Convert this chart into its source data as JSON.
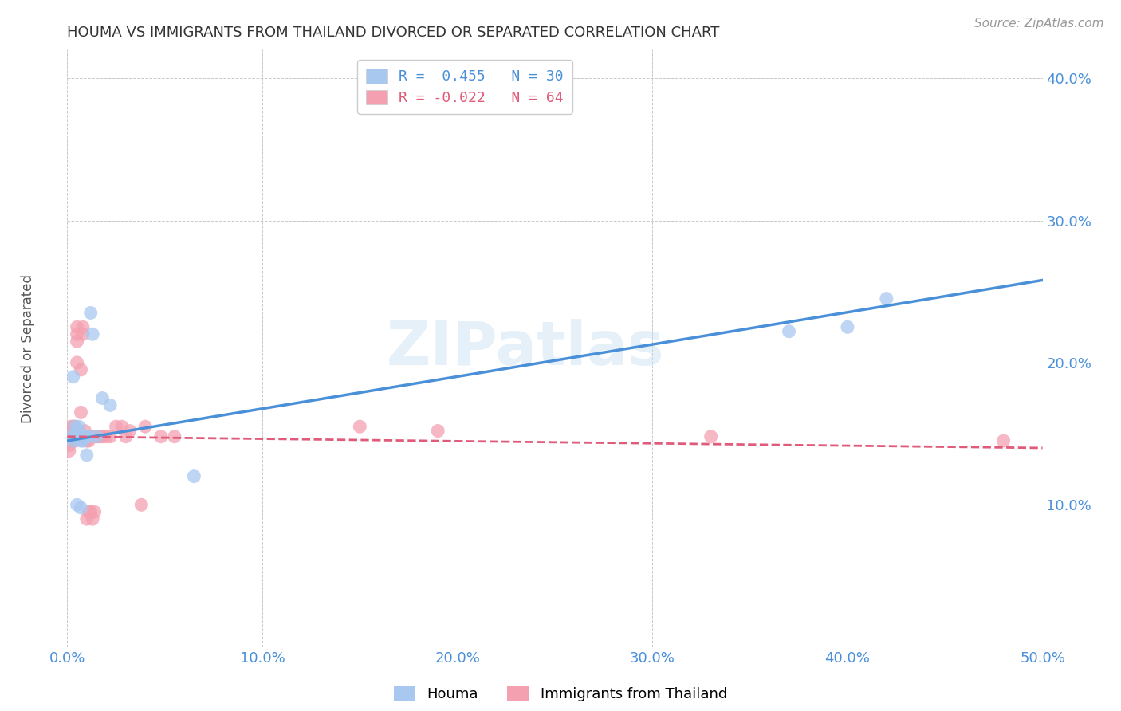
{
  "title": "HOUMA VS IMMIGRANTS FROM THAILAND DIVORCED OR SEPARATED CORRELATION CHART",
  "source": "Source: ZipAtlas.com",
  "ylabel": "Divorced or Separated",
  "xlim": [
    0.0,
    0.5
  ],
  "ylim": [
    0.0,
    0.42
  ],
  "xtick_labels": [
    "0.0%",
    "10.0%",
    "20.0%",
    "30.0%",
    "40.0%",
    "50.0%"
  ],
  "xtick_vals": [
    0.0,
    0.1,
    0.2,
    0.3,
    0.4,
    0.5
  ],
  "ytick_labels": [
    "10.0%",
    "20.0%",
    "30.0%",
    "40.0%"
  ],
  "ytick_vals": [
    0.1,
    0.2,
    0.3,
    0.4
  ],
  "houma_color": "#a8c8f0",
  "thailand_color": "#f4a0b0",
  "houma_line_color": "#4a90d9",
  "thailand_line_color": "#e05a7a",
  "legend_houma_R": "R =  0.455",
  "legend_houma_N": "N = 30",
  "legend_thailand_R": "R = -0.022",
  "legend_thailand_N": "N = 64",
  "watermark": "ZIPatlas",
  "houma_x": [
    0.002,
    0.003,
    0.003,
    0.004,
    0.004,
    0.005,
    0.005,
    0.005,
    0.006,
    0.006,
    0.007,
    0.007,
    0.007,
    0.008,
    0.008,
    0.008,
    0.009,
    0.009,
    0.01,
    0.01,
    0.011,
    0.012,
    0.013,
    0.015,
    0.018,
    0.022,
    0.065,
    0.37,
    0.4,
    0.42
  ],
  "houma_y": [
    0.148,
    0.145,
    0.19,
    0.148,
    0.155,
    0.148,
    0.152,
    0.1,
    0.148,
    0.155,
    0.148,
    0.145,
    0.098,
    0.148,
    0.145,
    0.148,
    0.148,
    0.148,
    0.135,
    0.148,
    0.148,
    0.235,
    0.22,
    0.148,
    0.175,
    0.17,
    0.12,
    0.222,
    0.225,
    0.245
  ],
  "thailand_x": [
    0.001,
    0.001,
    0.001,
    0.001,
    0.002,
    0.002,
    0.002,
    0.002,
    0.002,
    0.003,
    0.003,
    0.003,
    0.003,
    0.003,
    0.004,
    0.004,
    0.004,
    0.004,
    0.004,
    0.005,
    0.005,
    0.005,
    0.005,
    0.006,
    0.006,
    0.006,
    0.007,
    0.007,
    0.007,
    0.007,
    0.008,
    0.008,
    0.008,
    0.009,
    0.009,
    0.009,
    0.01,
    0.01,
    0.01,
    0.011,
    0.011,
    0.012,
    0.012,
    0.013,
    0.013,
    0.014,
    0.015,
    0.016,
    0.017,
    0.018,
    0.02,
    0.022,
    0.025,
    0.028,
    0.03,
    0.032,
    0.038,
    0.04,
    0.048,
    0.055,
    0.15,
    0.19,
    0.33,
    0.48
  ],
  "thailand_y": [
    0.138,
    0.142,
    0.148,
    0.148,
    0.145,
    0.148,
    0.15,
    0.155,
    0.148,
    0.148,
    0.148,
    0.152,
    0.155,
    0.145,
    0.148,
    0.15,
    0.148,
    0.155,
    0.145,
    0.2,
    0.215,
    0.22,
    0.225,
    0.148,
    0.152,
    0.148,
    0.148,
    0.165,
    0.195,
    0.148,
    0.148,
    0.22,
    0.225,
    0.148,
    0.152,
    0.148,
    0.145,
    0.148,
    0.09,
    0.145,
    0.095,
    0.148,
    0.095,
    0.148,
    0.09,
    0.095,
    0.148,
    0.148,
    0.148,
    0.148,
    0.148,
    0.148,
    0.155,
    0.155,
    0.148,
    0.152,
    0.1,
    0.155,
    0.148,
    0.148,
    0.155,
    0.152,
    0.148,
    0.145
  ]
}
